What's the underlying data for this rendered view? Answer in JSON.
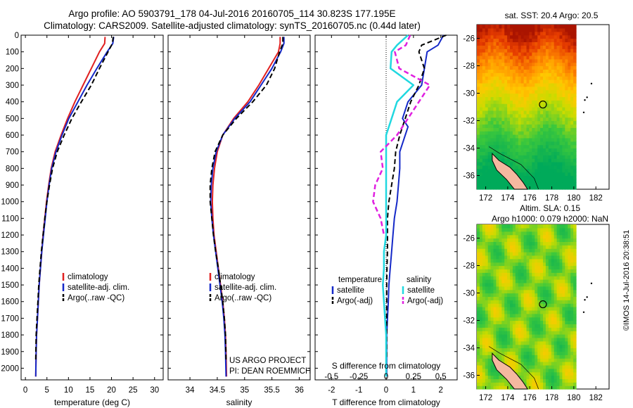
{
  "header": {
    "line1": "Argo profile: AO 5903791_178 04-Jul-2016 20160705_114 30.823S 177.195E",
    "line2": "Climatology: CARS2009. Satellite-adjusted climatology: synTS_20160705.nc (0.44d later)"
  },
  "stamp": "©IMOS 14-Jul-2016 20:38:51",
  "colors": {
    "clim": "#e02020",
    "sat": "#1428c8",
    "argo": "#000000",
    "s_sat": "#20d8e0",
    "s_argo": "#e020e0"
  },
  "chart_data": [
    {
      "type": "line",
      "xlabel": "temperature (deg C)",
      "xlim": [
        -1,
        32
      ],
      "xticks": [
        0,
        5,
        10,
        15,
        20,
        25,
        30
      ],
      "ylim": [
        2070,
        0
      ],
      "yticks": [
        0,
        100,
        200,
        300,
        400,
        500,
        600,
        700,
        800,
        900,
        1000,
        1100,
        1200,
        1300,
        1400,
        1500,
        1600,
        1700,
        1800,
        1900,
        2000
      ],
      "legend": [
        "climatology",
        "satellite-adj. clim.",
        "Argo(..raw -QC)"
      ],
      "series": [
        {
          "name": "climatology",
          "style": "clim",
          "x": [
            18.5,
            18.4,
            17.2,
            15.3,
            13.4,
            11.5,
            9.8,
            8.3,
            6.9,
            6.0,
            5.4,
            4.9,
            4.5,
            4.1,
            3.8,
            3.5,
            3.2,
            3.0,
            2.8,
            2.6,
            2.5,
            2.4
          ],
          "y": [
            10,
            50,
            100,
            200,
            300,
            400,
            500,
            600,
            700,
            800,
            900,
            1000,
            1100,
            1200,
            1300,
            1400,
            1500,
            1600,
            1700,
            1800,
            1900,
            2050
          ]
        },
        {
          "name": "satellite-adj. clim.",
          "style": "sat",
          "x": [
            20.5,
            20.3,
            19.0,
            16.6,
            14.3,
            12.2,
            10.1,
            8.5,
            7.1,
            6.1,
            5.5,
            5.0,
            4.6,
            4.2,
            3.8,
            3.5,
            3.2,
            3.0,
            2.8,
            2.6,
            2.5,
            2.4
          ],
          "y": [
            10,
            50,
            100,
            200,
            300,
            400,
            500,
            600,
            700,
            800,
            900,
            1000,
            1100,
            1200,
            1300,
            1400,
            1500,
            1600,
            1700,
            1800,
            1900,
            2050
          ]
        },
        {
          "name": "Argo(..raw -QC)",
          "style": "argo",
          "x": [
            20.4,
            20.2,
            19.2,
            17.2,
            15.3,
            13.0,
            10.8,
            9.0,
            7.4,
            6.3,
            5.6,
            5.0,
            4.5,
            4.1,
            3.7,
            3.4,
            3.1,
            2.9,
            2.7,
            2.5,
            2.4
          ],
          "y": [
            10,
            50,
            100,
            200,
            300,
            400,
            500,
            600,
            700,
            800,
            900,
            1000,
            1100,
            1200,
            1300,
            1400,
            1500,
            1600,
            1700,
            1800,
            1950
          ]
        }
      ]
    },
    {
      "type": "line",
      "xlabel": "salinity",
      "xlim": [
        33.6,
        36.2
      ],
      "xticks": [
        34,
        34.5,
        35,
        35.5,
        36
      ],
      "ylim": [
        2070,
        0
      ],
      "legend": [
        "climatology",
        "satellite-adj. clim.",
        "Argo(..raw -QC)"
      ],
      "annotation": [
        "US ARGO PROJECT",
        "PI: DEAN ROEMMICH"
      ],
      "series": [
        {
          "name": "climatology",
          "style": "clim",
          "x": [
            35.65,
            35.65,
            35.62,
            35.44,
            35.26,
            35.06,
            34.8,
            34.6,
            34.5,
            34.45,
            34.42,
            34.41,
            34.42,
            34.44,
            34.48,
            34.52,
            34.56,
            34.6,
            34.63,
            34.65,
            34.66,
            34.67
          ],
          "y": [
            10,
            50,
            100,
            200,
            300,
            400,
            500,
            600,
            700,
            800,
            900,
            1000,
            1100,
            1200,
            1300,
            1400,
            1500,
            1600,
            1700,
            1800,
            1900,
            2050
          ]
        },
        {
          "name": "satellite-adj. clim.",
          "style": "sat",
          "x": [
            35.72,
            35.72,
            35.66,
            35.5,
            35.3,
            35.1,
            34.82,
            34.6,
            34.48,
            34.42,
            34.39,
            34.38,
            34.4,
            34.43,
            34.47,
            34.51,
            34.55,
            34.59,
            34.62,
            34.64,
            34.65,
            34.66
          ],
          "y": [
            10,
            50,
            100,
            200,
            300,
            400,
            500,
            600,
            700,
            800,
            900,
            1000,
            1100,
            1200,
            1300,
            1400,
            1500,
            1600,
            1700,
            1800,
            1900,
            2050
          ]
        },
        {
          "name": "Argo(..raw -QC)",
          "style": "argo",
          "x": [
            35.7,
            35.7,
            35.64,
            35.55,
            35.4,
            35.15,
            34.85,
            34.6,
            34.46,
            34.4,
            34.37,
            34.37,
            34.4,
            34.43,
            34.47,
            34.52,
            34.56,
            34.6,
            34.63,
            34.65,
            34.66
          ],
          "y": [
            10,
            50,
            100,
            200,
            300,
            400,
            500,
            600,
            700,
            800,
            900,
            1000,
            1100,
            1200,
            1300,
            1400,
            1500,
            1600,
            1700,
            1800,
            1950
          ]
        }
      ]
    },
    {
      "type": "line",
      "xlabel": "T difference from climatology",
      "xlabel2": "S difference from climatology",
      "xlim": [
        -2.6,
        2.6
      ],
      "xticks": [
        -2,
        -1,
        0,
        1,
        2
      ],
      "xticks2": [
        -0.5,
        -0.25,
        0,
        0.25,
        0.5
      ],
      "ylim": [
        2070,
        0
      ],
      "legend_headers": [
        "temperature",
        "salinity"
      ],
      "legend": [
        "satellite",
        "Argo(-adj)",
        "satellite",
        "Argo(-adj)"
      ],
      "series": [
        {
          "name": "satellite",
          "style": "sat",
          "x": [
            2.1,
            1.9,
            1.5,
            1.4,
            1.3,
            0.8,
            0.6,
            0.8,
            0.5,
            0.5,
            0.45,
            0.4,
            0.3,
            0.25,
            0.2,
            0.15,
            0.1,
            0.08,
            0.05,
            0.02,
            0.02,
            0.02
          ],
          "y": [
            0,
            60,
            100,
            200,
            300,
            400,
            500,
            550,
            700,
            800,
            900,
            1000,
            1100,
            1200,
            1300,
            1400,
            1500,
            1600,
            1700,
            1800,
            1900,
            2050
          ]
        },
        {
          "name": "Argo(-adj)",
          "style": "argo",
          "x": [
            2.2,
            1.3,
            1.2,
            1.4,
            1.2,
            0.9,
            0.7,
            0.5,
            0.35,
            0.3,
            0.2,
            0.1,
            0.05,
            0.05,
            0.05,
            0.03,
            0.02,
            0.02,
            0.02,
            0.02,
            0.02
          ],
          "y": [
            0,
            60,
            100,
            200,
            300,
            400,
            500,
            600,
            700,
            800,
            900,
            1000,
            1100,
            1200,
            1300,
            1400,
            1500,
            1600,
            1700,
            1800,
            1950
          ]
        },
        {
          "name": "satellite",
          "style": "s_sat",
          "x": [
            0.2,
            0.1,
            0.05,
            0.04,
            0.25,
            0.1,
            0.05,
            0.0,
            0.0,
            0.0,
            0.0,
            0.0,
            0.0,
            0.0,
            -0.02,
            -0.02,
            -0.03,
            -0.02,
            -0.01,
            0.0,
            0.0,
            0.0
          ],
          "y": [
            0,
            60,
            100,
            200,
            300,
            400,
            500,
            600,
            700,
            800,
            900,
            1000,
            1100,
            1200,
            1300,
            1400,
            1500,
            1600,
            1700,
            1800,
            1900,
            2050
          ]
        },
        {
          "name": "Argo(-adj)",
          "style": "s_argo",
          "x": [
            0.22,
            0.18,
            0.08,
            0.12,
            0.4,
            0.3,
            0.2,
            0.1,
            -0.05,
            -0.03,
            -0.1,
            -0.12,
            -0.05,
            -0.02
          ],
          "y": [
            0,
            60,
            100,
            200,
            300,
            400,
            500,
            600,
            700,
            800,
            900,
            1000,
            1100,
            1200
          ]
        }
      ]
    },
    {
      "type": "heatmap",
      "title": "sat. SST: 20.4  Argo: 20.5",
      "xlim": [
        171.2,
        183.2
      ],
      "ylim": [
        -37,
        -25
      ],
      "xticks": [
        172,
        174,
        176,
        178,
        180,
        182
      ],
      "yticks": [
        -26,
        -28,
        -30,
        -32,
        -34,
        -36
      ],
      "marker": [
        177.195,
        -30.823
      ]
    },
    {
      "type": "heatmap",
      "title": "Altim. SLA: 0.15",
      "subtitle": "Argo h1000: 0.079 h2000: NaN",
      "xlim": [
        171.2,
        183.2
      ],
      "ylim": [
        -37,
        -25
      ],
      "xticks": [
        172,
        174,
        176,
        178,
        180,
        182
      ],
      "yticks": [
        -26,
        -28,
        -30,
        -32,
        -34,
        -36
      ],
      "marker": [
        177.195,
        -30.823
      ]
    }
  ]
}
